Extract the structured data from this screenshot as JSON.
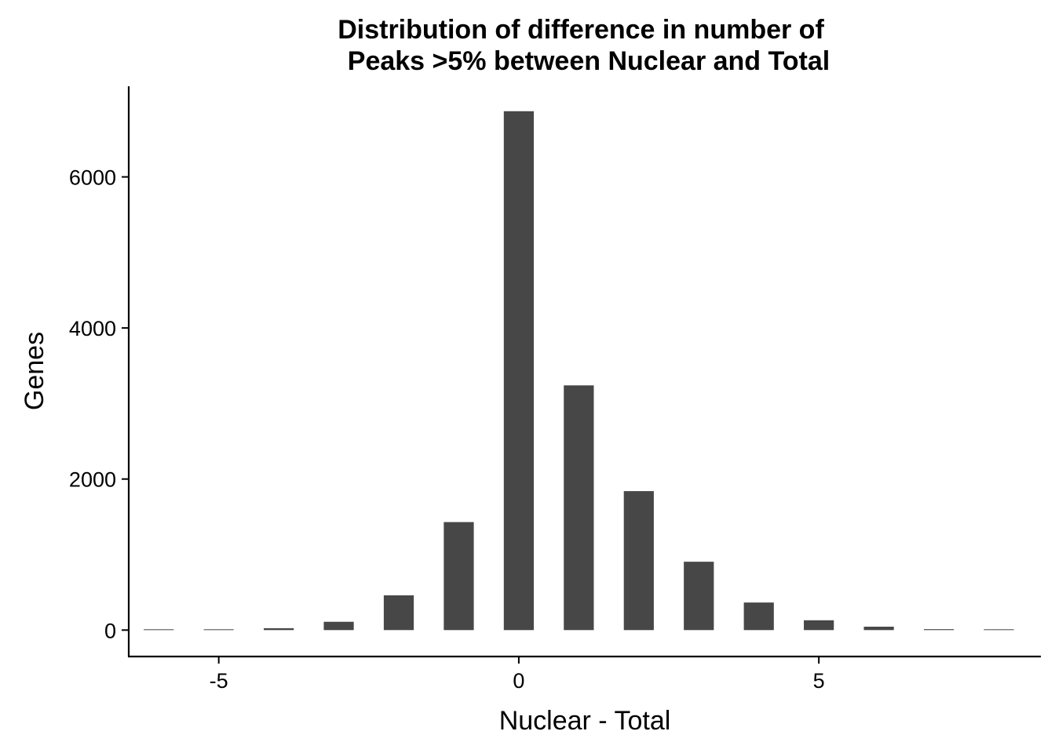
{
  "chart_data": {
    "type": "bar",
    "title_lines": [
      "Distribution of difference in number of",
      "Peaks >5% between Nuclear and Total"
    ],
    "xlabel": "Nuclear - Total",
    "ylabel": "Genes",
    "x": [
      -6,
      -5,
      -4,
      -3,
      -2,
      -1,
      0,
      1,
      2,
      3,
      4,
      5,
      6,
      7,
      8
    ],
    "values": [
      3,
      6,
      25,
      110,
      460,
      1430,
      6870,
      3240,
      1840,
      905,
      365,
      130,
      45,
      12,
      3
    ],
    "xlim": [
      -6.5,
      8.7
    ],
    "ylim": [
      -350,
      7200
    ],
    "xticks": [
      -5,
      0,
      5
    ],
    "xtick_labels": [
      "-5",
      "0",
      "5"
    ],
    "yticks": [
      0,
      2000,
      4000,
      6000
    ],
    "ytick_labels": [
      "0",
      "2000",
      "4000",
      "6000"
    ],
    "bar_color": "#474747",
    "grid": false,
    "legend": "none"
  }
}
